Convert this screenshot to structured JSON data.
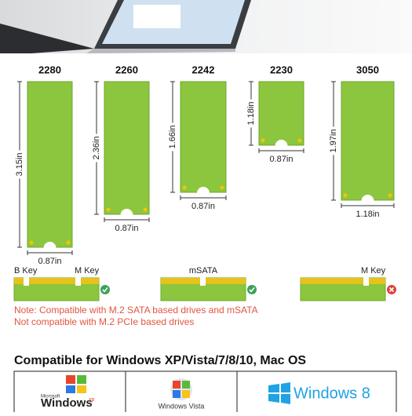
{
  "boards": [
    {
      "label": "2280",
      "height": "3.15in",
      "width": "0.87in"
    },
    {
      "label": "2260",
      "height": "2.36in",
      "width": "0.87in"
    },
    {
      "label": "2242",
      "height": "1.66in",
      "width": "0.87in"
    },
    {
      "label": "2230",
      "height": "1.18in",
      "width": "0.87in"
    },
    {
      "label": "3050",
      "height": "1.97in",
      "width": "1.18in"
    }
  ],
  "keys": {
    "b_key": "B Key",
    "m_key_1": "M Key",
    "msata": "mSATA",
    "m_key_2": "M Key"
  },
  "notes": [
    "Note: Compatible with M.2 SATA based drives and mSATA",
    "Not compatible with M.2 PCIe based drives"
  ],
  "heading": "Compatible for Windows XP/Vista/7/8/10, Mac OS",
  "logos": [
    {
      "brand": "Microsoft",
      "name": "Windows",
      "suffix": "xp"
    },
    {
      "name": "Windows Vista"
    },
    {
      "name": "Windows 8"
    }
  ]
}
